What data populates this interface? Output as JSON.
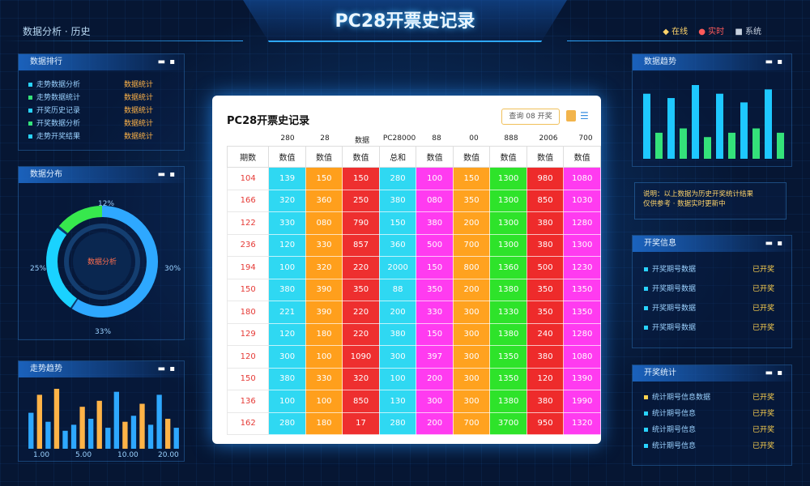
{
  "header": {
    "title": "PC28开票史记录",
    "left_title": "数据分析 · 历史",
    "right_status": [
      "◆ 在线",
      "● 实时",
      "■ 系统"
    ]
  },
  "left": {
    "panel1": {
      "title": "数据排行",
      "rows": [
        {
          "left": "走势数据分析",
          "right": "数据统计"
        },
        {
          "left": "走势数据统计",
          "right": "数据统计"
        },
        {
          "left": "开奖历史记录",
          "right": "数据统计"
        },
        {
          "left": "开奖数据分析",
          "right": "数据统计"
        },
        {
          "left": "走势开奖结果",
          "right": "数据统计"
        }
      ]
    },
    "panel2": {
      "title": "数据分布",
      "center_text": "数据分析",
      "labels": [
        "12%",
        "25%",
        "30%",
        "33%"
      ]
    },
    "panel3": {
      "title": "走势趋势",
      "bars": [
        12,
        18,
        9,
        20,
        6,
        8,
        14,
        10,
        16,
        7,
        19,
        9,
        11,
        15,
        8,
        18,
        10,
        7
      ],
      "x_labels": [
        "1.00",
        "5.00",
        "10.00",
        "20.00"
      ]
    }
  },
  "right": {
    "panel1": {
      "title": "数据趋势",
      "bars": [
        30,
        12,
        28,
        14,
        34,
        10,
        30,
        12,
        26,
        14,
        32,
        12
      ]
    },
    "notice": [
      "说明：以上数据为历史开奖统计结果",
      "仅供参考 · 数据实时更新中"
    ],
    "panel2": {
      "title": "开奖信息",
      "rows": [
        {
          "left": "开奖期号数据",
          "right": "已开奖"
        },
        {
          "left": "开奖期号数据",
          "right": "已开奖"
        },
        {
          "left": "开奖期号数据",
          "right": "已开奖"
        },
        {
          "left": "开奖期号数据",
          "right": "已开奖"
        }
      ]
    },
    "panel3": {
      "title": "开奖统计",
      "rows": [
        {
          "left": "统计期号信息数据",
          "right": "已开奖"
        },
        {
          "left": "统计期号信息",
          "right": "已开奖"
        },
        {
          "left": "统计期号信息",
          "right": "已开奖"
        },
        {
          "left": "统计期号信息",
          "right": "已开奖"
        }
      ]
    }
  },
  "card": {
    "title": "PC28开票史记录",
    "search": "查询 08 开奖",
    "group_labels": [
      "280",
      "28",
      "数据",
      "PC28000",
      "88",
      "00",
      "888",
      "2006",
      "700"
    ],
    "headers": [
      "期数",
      "数值",
      "数值",
      "数值",
      "总和",
      "数值",
      "数值",
      "数值",
      "数值",
      "数值"
    ],
    "rows": [
      [
        "104",
        "139",
        "150",
        "150",
        "280",
        "100",
        "150",
        "1300",
        "980",
        "1080"
      ],
      [
        "166",
        "320",
        "360",
        "250",
        "380",
        "080",
        "350",
        "1300",
        "850",
        "1030"
      ],
      [
        "122",
        "330",
        "080",
        "790",
        "150",
        "380",
        "200",
        "1300",
        "380",
        "1280"
      ],
      [
        "236",
        "120",
        "330",
        "857",
        "360",
        "500",
        "700",
        "1300",
        "380",
        "1300"
      ],
      [
        "194",
        "100",
        "320",
        "220",
        "2000",
        "150",
        "800",
        "1360",
        "500",
        "1230"
      ],
      [
        "150",
        "380",
        "390",
        "350",
        "88",
        "350",
        "200",
        "1380",
        "350",
        "1350"
      ],
      [
        "180",
        "221",
        "390",
        "220",
        "200",
        "330",
        "300",
        "1330",
        "350",
        "1350"
      ],
      [
        "129",
        "120",
        "180",
        "220",
        "380",
        "150",
        "300",
        "1380",
        "240",
        "1280"
      ],
      [
        "120",
        "300",
        "100",
        "1090",
        "300",
        "397",
        "300",
        "1350",
        "380",
        "1080"
      ],
      [
        "150",
        "380",
        "330",
        "320",
        "100",
        "200",
        "300",
        "1350",
        "120",
        "1390"
      ],
      [
        "136",
        "100",
        "100",
        "850",
        "130",
        "300",
        "300",
        "1380",
        "380",
        "1990"
      ],
      [
        "162",
        "280",
        "180",
        "17",
        "280",
        "200",
        "700",
        "3700",
        "950",
        "1320"
      ]
    ]
  }
}
